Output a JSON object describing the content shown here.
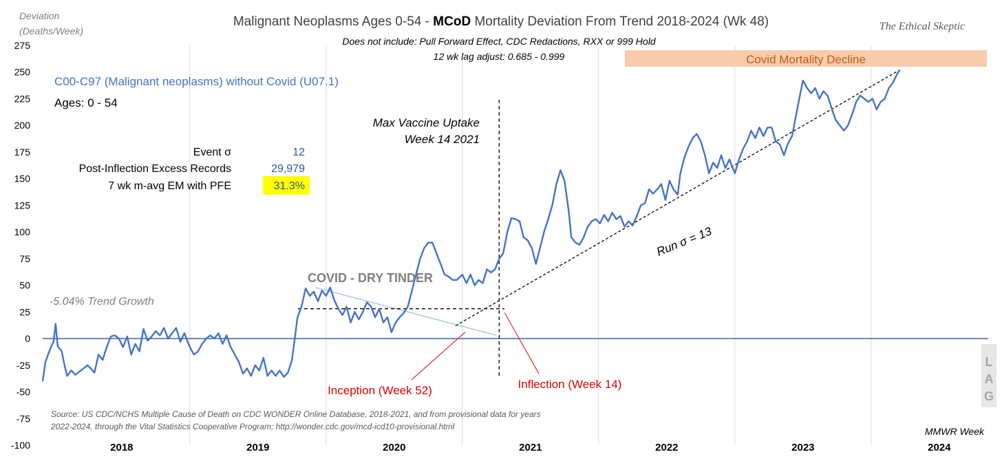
{
  "chart_data": {
    "type": "line",
    "title_parts": [
      "Malignant Neoplasms Ages 0-54 - ",
      "MCoD",
      " Mortality Deviation From Trend  2018-2024 (Wk 48)"
    ],
    "subtitle_lines": [
      "Does not include: Pull Forward Effect,  CDC Redactions, RXX or 999 Hold",
      "12 wk lag adjust: 0.685 - 0.999"
    ],
    "ylabel_lines": [
      "Deviation",
      "(Deaths/Week)"
    ],
    "xlabel": "MMWR Week",
    "brand": "The Ethical Skeptic",
    "ylim": [
      -100,
      275
    ],
    "yticks": [
      275,
      250,
      225,
      200,
      175,
      150,
      125,
      100,
      75,
      50,
      25,
      0,
      -25,
      -50,
      -75,
      -100
    ],
    "x_range_years": [
      2017.92,
      2024.92
    ],
    "year_labels": [
      "2018",
      "2019",
      "2020",
      "2021",
      "2022",
      "2023",
      "2024"
    ],
    "grid": true,
    "series": [
      {
        "name": "C00-C97 (Malignant neoplasms) without Covid (U07.1)",
        "color": "#4472c4",
        "points": [
          [
            2017.92,
            -40
          ],
          [
            2017.94,
            -22
          ],
          [
            2017.96,
            -15
          ],
          [
            2017.98,
            -8
          ],
          [
            2018.0,
            -3
          ],
          [
            2018.015,
            14
          ],
          [
            2018.03,
            -7
          ],
          [
            2018.06,
            -12
          ],
          [
            2018.08,
            -25
          ],
          [
            2018.1,
            -35
          ],
          [
            2018.13,
            -30
          ],
          [
            2018.16,
            -34
          ],
          [
            2018.19,
            -31
          ],
          [
            2018.22,
            -28
          ],
          [
            2018.25,
            -25
          ],
          [
            2018.28,
            -29
          ],
          [
            2018.3,
            -32
          ],
          [
            2018.33,
            -15
          ],
          [
            2018.36,
            -20
          ],
          [
            2018.39,
            -8
          ],
          [
            2018.42,
            2
          ],
          [
            2018.45,
            3
          ],
          [
            2018.48,
            0
          ],
          [
            2018.51,
            -8
          ],
          [
            2018.54,
            2
          ],
          [
            2018.57,
            -15
          ],
          [
            2018.6,
            -5
          ],
          [
            2018.63,
            -12
          ],
          [
            2018.66,
            9
          ],
          [
            2018.69,
            -2
          ],
          [
            2018.72,
            2
          ],
          [
            2018.75,
            7
          ],
          [
            2018.78,
            3
          ],
          [
            2018.81,
            10
          ],
          [
            2018.84,
            0
          ],
          [
            2018.87,
            5
          ],
          [
            2018.9,
            10
          ],
          [
            2018.93,
            -3
          ],
          [
            2018.96,
            5
          ],
          [
            2019.0,
            -8
          ],
          [
            2019.03,
            -15
          ],
          [
            2019.06,
            -12
          ],
          [
            2019.09,
            -5
          ],
          [
            2019.12,
            0
          ],
          [
            2019.15,
            3
          ],
          [
            2019.18,
            0
          ],
          [
            2019.21,
            5
          ],
          [
            2019.24,
            -5
          ],
          [
            2019.27,
            3
          ],
          [
            2019.3,
            -8
          ],
          [
            2019.33,
            -15
          ],
          [
            2019.36,
            -22
          ],
          [
            2019.39,
            -33
          ],
          [
            2019.42,
            -28
          ],
          [
            2019.45,
            -35
          ],
          [
            2019.48,
            -25
          ],
          [
            2019.51,
            -30
          ],
          [
            2019.54,
            -18
          ],
          [
            2019.57,
            -35
          ],
          [
            2019.6,
            -30
          ],
          [
            2019.63,
            -35
          ],
          [
            2019.66,
            -30
          ],
          [
            2019.69,
            -36
          ],
          [
            2019.72,
            -32
          ],
          [
            2019.75,
            -20
          ],
          [
            2019.77,
            0
          ],
          [
            2019.79,
            20
          ],
          [
            2019.82,
            30
          ],
          [
            2019.85,
            47
          ],
          [
            2019.88,
            40
          ],
          [
            2019.91,
            44
          ],
          [
            2019.94,
            35
          ],
          [
            2019.97,
            45
          ],
          [
            2020.0,
            40
          ],
          [
            2020.03,
            48
          ],
          [
            2020.06,
            36
          ],
          [
            2020.09,
            28
          ],
          [
            2020.12,
            22
          ],
          [
            2020.15,
            30
          ],
          [
            2020.18,
            15
          ],
          [
            2020.21,
            25
          ],
          [
            2020.24,
            18
          ],
          [
            2020.27,
            25
          ],
          [
            2020.3,
            34
          ],
          [
            2020.33,
            30
          ],
          [
            2020.36,
            20
          ],
          [
            2020.39,
            28
          ],
          [
            2020.42,
            15
          ],
          [
            2020.45,
            20
          ],
          [
            2020.48,
            6
          ],
          [
            2020.51,
            15
          ],
          [
            2020.54,
            20
          ],
          [
            2020.57,
            24
          ],
          [
            2020.6,
            30
          ],
          [
            2020.63,
            45
          ],
          [
            2020.66,
            60
          ],
          [
            2020.69,
            75
          ],
          [
            2020.72,
            85
          ],
          [
            2020.75,
            90
          ],
          [
            2020.78,
            90
          ],
          [
            2020.81,
            80
          ],
          [
            2020.84,
            70
          ],
          [
            2020.87,
            60
          ],
          [
            2020.9,
            58
          ],
          [
            2020.93,
            55
          ],
          [
            2020.96,
            55
          ],
          [
            2021.0,
            60
          ],
          [
            2021.03,
            52
          ],
          [
            2021.06,
            60
          ],
          [
            2021.09,
            50
          ],
          [
            2021.12,
            55
          ],
          [
            2021.15,
            52
          ],
          [
            2021.18,
            65
          ],
          [
            2021.21,
            62
          ],
          [
            2021.24,
            65
          ],
          [
            2021.27,
            75
          ],
          [
            2021.3,
            80
          ],
          [
            2021.33,
            100
          ],
          [
            2021.36,
            113
          ],
          [
            2021.39,
            112
          ],
          [
            2021.42,
            110
          ],
          [
            2021.45,
            95
          ],
          [
            2021.48,
            92
          ],
          [
            2021.51,
            85
          ],
          [
            2021.54,
            70
          ],
          [
            2021.57,
            85
          ],
          [
            2021.6,
            100
          ],
          [
            2021.63,
            112
          ],
          [
            2021.66,
            125
          ],
          [
            2021.69,
            145
          ],
          [
            2021.72,
            158
          ],
          [
            2021.75,
            148
          ],
          [
            2021.78,
            120
          ],
          [
            2021.8,
            95
          ],
          [
            2021.83,
            90
          ],
          [
            2021.86,
            88
          ],
          [
            2021.89,
            95
          ],
          [
            2021.92,
            105
          ],
          [
            2021.95,
            110
          ],
          [
            2021.98,
            112
          ],
          [
            2022.01,
            108
          ],
          [
            2022.04,
            116
          ],
          [
            2022.07,
            110
          ],
          [
            2022.1,
            118
          ],
          [
            2022.13,
            112
          ],
          [
            2022.16,
            115
          ],
          [
            2022.19,
            105
          ],
          [
            2022.22,
            110
          ],
          [
            2022.25,
            106
          ],
          [
            2022.28,
            115
          ],
          [
            2022.31,
            125
          ],
          [
            2022.34,
            127
          ],
          [
            2022.37,
            140
          ],
          [
            2022.4,
            136
          ],
          [
            2022.43,
            140
          ],
          [
            2022.46,
            145
          ],
          [
            2022.49,
            130
          ],
          [
            2022.52,
            148
          ],
          [
            2022.55,
            140
          ],
          [
            2022.58,
            135
          ],
          [
            2022.6,
            155
          ],
          [
            2022.63,
            170
          ],
          [
            2022.66,
            180
          ],
          [
            2022.69,
            188
          ],
          [
            2022.72,
            192
          ],
          [
            2022.75,
            185
          ],
          [
            2022.78,
            172
          ],
          [
            2022.81,
            155
          ],
          [
            2022.84,
            165
          ],
          [
            2022.87,
            160
          ],
          [
            2022.9,
            172
          ],
          [
            2022.93,
            160
          ],
          [
            2022.96,
            168
          ],
          [
            2023.0,
            155
          ],
          [
            2023.03,
            168
          ],
          [
            2023.06,
            178
          ],
          [
            2023.09,
            185
          ],
          [
            2023.12,
            195
          ],
          [
            2023.15,
            188
          ],
          [
            2023.18,
            198
          ],
          [
            2023.21,
            190
          ],
          [
            2023.24,
            198
          ],
          [
            2023.27,
            198
          ],
          [
            2023.3,
            185
          ],
          [
            2023.33,
            182
          ],
          [
            2023.36,
            172
          ],
          [
            2023.39,
            183
          ],
          [
            2023.42,
            190
          ],
          [
            2023.45,
            210
          ],
          [
            2023.48,
            230
          ],
          [
            2023.5,
            242
          ],
          [
            2023.53,
            235
          ],
          [
            2023.56,
            230
          ],
          [
            2023.59,
            235
          ],
          [
            2023.62,
            225
          ],
          [
            2023.65,
            232
          ],
          [
            2023.68,
            228
          ],
          [
            2023.71,
            216
          ],
          [
            2023.74,
            205
          ],
          [
            2023.77,
            200
          ],
          [
            2023.8,
            195
          ],
          [
            2023.83,
            200
          ],
          [
            2023.86,
            210
          ],
          [
            2023.89,
            222
          ],
          [
            2023.92,
            228
          ],
          [
            2023.95,
            225
          ],
          [
            2023.98,
            222
          ],
          [
            2024.01,
            225
          ],
          [
            2024.04,
            215
          ],
          [
            2024.07,
            222
          ],
          [
            2024.1,
            225
          ],
          [
            2024.13,
            235
          ],
          [
            2024.16,
            240
          ],
          [
            2024.19,
            248
          ],
          [
            2024.21,
            252
          ]
        ]
      }
    ],
    "inflection_x": 2021.27,
    "inflection_y": 28,
    "inception_x": 2020.99,
    "dry_tinder_line": [
      [
        2019.92,
        48
      ],
      [
        2021.25,
        3
      ]
    ],
    "run_trend_line": [
      [
        2020.95,
        12
      ],
      [
        2024.21,
        252
      ]
    ],
    "labels": {
      "series_label": "C00-C97 (Malignant neoplasms) without Covid (U07.1)",
      "ages": "Ages: 0 - 54",
      "stat_rows": [
        {
          "label": "Event σ",
          "value": "12"
        },
        {
          "label": "Post-Inflection Excess Records",
          "value": "29,979"
        },
        {
          "label": "7 wk m-avg EM with PFE",
          "value": "31.3%"
        }
      ],
      "max_vax_lines": [
        "Max Vaccine Uptake",
        "Week 14 2021"
      ],
      "trend_growth": "-5.04% Trend Growth",
      "dry_tinder": "COVID - DRY TINDER",
      "run_sigma": "Run σ = 13",
      "inception": "Inception (Week 52)",
      "inflection": "Inflection (Week 14)",
      "band_label": "Covid Mortality Decline",
      "lag_letters": [
        "L",
        "A",
        "G"
      ],
      "source_lines": [
        "Source: US CDC/NCHS Multiple Cause of Death on CDC WONDER Online Database, 2018-2021, and from provisional data for years",
        "2022-2024, through the Vital Statistics Cooperative Program; http://wonder.cdc.gov/mcd-icd10-provisional.html"
      ]
    },
    "colors": {
      "series": "#4472c4",
      "zero_line": "#2f5597",
      "grid": "#d9d9d9",
      "highlight": "#ffff00",
      "band": "#f8cbad",
      "lag_band": "#e7e6e6",
      "annotation_red": "#e00000",
      "dry_tinder_line": "#9dc3e6"
    }
  }
}
